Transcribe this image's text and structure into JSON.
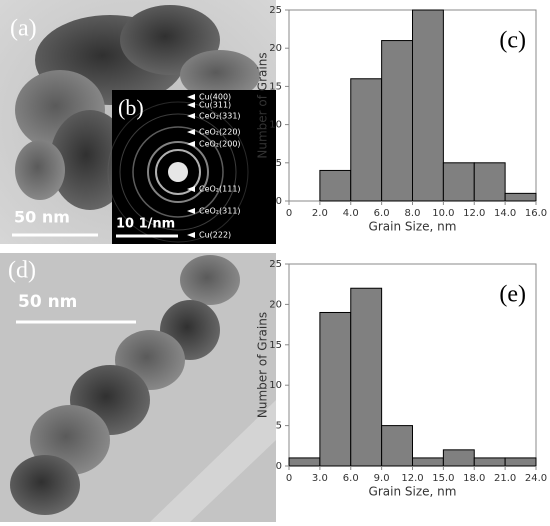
{
  "chart_data": [
    {
      "type": "histogram",
      "annotation": "(c)",
      "xlabel": "Grain Size, nm",
      "ylabel": "Number of Grains",
      "bins": [
        0,
        2,
        4,
        6,
        8,
        10,
        12,
        14,
        16
      ],
      "counts": [
        0,
        4,
        16,
        21,
        25,
        5,
        5,
        1
      ],
      "color": "#808080",
      "xlim": [
        0,
        16
      ],
      "xticks": [
        0,
        {
          "value": 2,
          "label": "2.0"
        },
        {
          "value": 4,
          "label": "4.0"
        },
        {
          "value": 6,
          "label": "6.0"
        },
        {
          "value": 8,
          "label": "8.0"
        },
        {
          "value": 10,
          "label": "10.0"
        },
        {
          "value": 12,
          "label": "12.0"
        },
        {
          "value": 14,
          "label": "14.0"
        },
        {
          "value": 16,
          "label": "16.0"
        }
      ],
      "ylim": [
        0,
        25
      ],
      "yticks": [
        0,
        5,
        10,
        15,
        20,
        25
      ],
      "grid": false
    },
    {
      "type": "histogram",
      "annotation": "(e)",
      "xlabel": "Grain Size, nm",
      "ylabel": "Number of Grains",
      "bins": [
        0,
        3,
        6,
        9,
        12,
        15,
        18,
        21,
        24
      ],
      "counts": [
        1,
        19,
        22,
        5,
        1,
        2,
        1,
        1
      ],
      "color": "#808080",
      "xlim": [
        0,
        24
      ],
      "xticks": [
        0,
        {
          "value": 3,
          "label": "3.0"
        },
        {
          "value": 6,
          "label": "6.0"
        },
        {
          "value": 9,
          "label": "9.0"
        },
        {
          "value": 12,
          "label": "12.0"
        },
        {
          "value": 15,
          "label": "15.0"
        },
        {
          "value": 18,
          "label": "18.0"
        },
        {
          "value": 21,
          "label": "21.0"
        },
        {
          "value": 24,
          "label": "24.0"
        }
      ],
      "ylim": [
        0,
        25
      ],
      "yticks": [
        0,
        5,
        10,
        15,
        20,
        25
      ],
      "grid": false
    }
  ],
  "images": {
    "a": {
      "label": "(a)",
      "scale_bar": "50 nm"
    },
    "b": {
      "label": "(b)",
      "scale_bar": "10 1/nm",
      "rings": [
        "Cu(400)",
        "Cu(311)",
        "CeO₂(331)",
        "CeO₂(220)",
        "CeO₂(200)",
        "CeO₂(111)",
        "CeO₂(311)",
        "Cu(222)"
      ]
    },
    "d": {
      "label": "(d)",
      "scale_bar": "50 nm"
    }
  }
}
